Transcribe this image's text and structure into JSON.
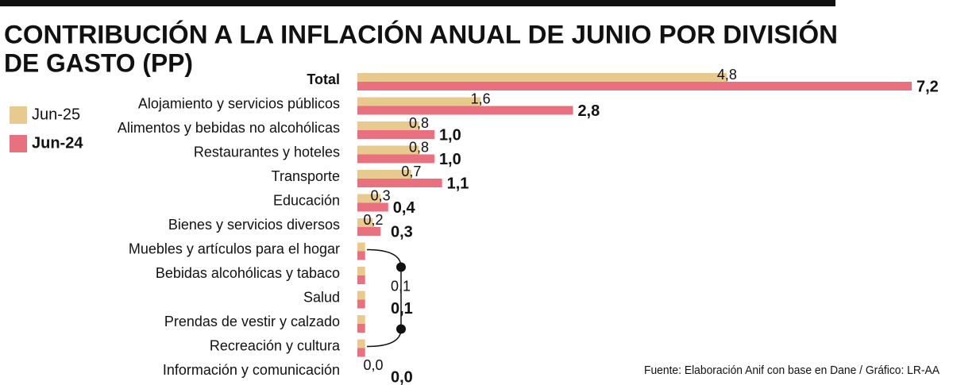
{
  "chart_data": {
    "type": "hbar",
    "title": [
      "CONTRIBUCIÓN A LA INFLACIÓN ANUAL DE JUNIO POR DIVISIÓN",
      "DE GASTO (PP)"
    ],
    "categories": [
      "Total",
      "Alojamiento y servicios públicos",
      "Alimentos y bebidas no alcohólicas",
      "Restaurantes y hoteles",
      "Transporte",
      "Educación",
      "Bienes y servicios diversos",
      "Muebles y artículos para el hogar",
      "Bebidas alcohólicas y tabaco",
      "Salud",
      "Prendas de vestir y calzado",
      "Recreación y cultura",
      "Información y comunicación"
    ],
    "series": [
      {
        "name": "Jun-25",
        "color": "#e8c98e",
        "values": [
          4.8,
          1.6,
          0.8,
          0.8,
          0.7,
          0.3,
          0.2,
          0.1,
          0.1,
          0.1,
          0.1,
          0.1,
          0
        ],
        "value_labels": [
          "4,8",
          "1,6",
          "0,8",
          "0,8",
          "0,7",
          "0,3",
          "0,2",
          null,
          null,
          null,
          null,
          null,
          "0,0"
        ]
      },
      {
        "name": "Jun-24",
        "color": "#e9707e",
        "values": [
          7.2,
          2.8,
          1.0,
          1.0,
          1.1,
          0.4,
          0.3,
          0.1,
          0.1,
          0.1,
          0.1,
          0.1,
          0
        ],
        "value_labels": [
          "7,2",
          "2,8",
          "1,0",
          "1,0",
          "1,1",
          "0,4",
          "0,3",
          null,
          null,
          null,
          null,
          null,
          "0,0"
        ]
      }
    ],
    "bracket": {
      "first": 7,
      "last": 11,
      "labels": [
        "0,1",
        "0,1"
      ]
    },
    "xlim": [
      0,
      7.2
    ],
    "source": "Fuente: Elaboración Anif con base en Dane / Gráfico: LR-AA"
  }
}
